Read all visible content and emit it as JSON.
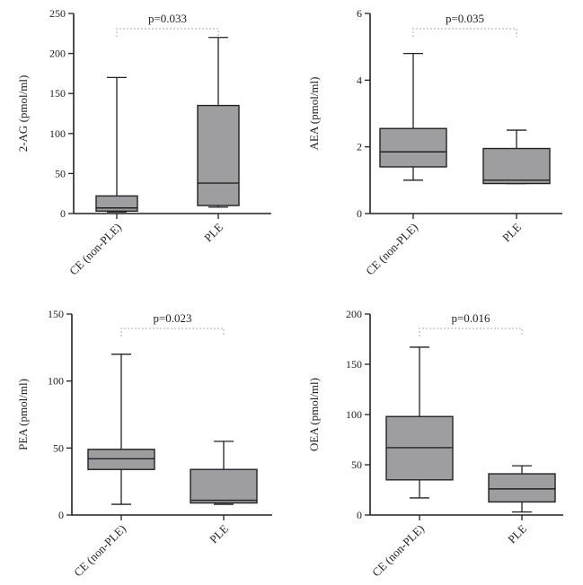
{
  "chart_data": [
    {
      "type": "boxplot",
      "ylabel": "2-AG (pmol/ml)",
      "ylim": [
        0,
        250
      ],
      "yticks": [
        0,
        50,
        100,
        150,
        200,
        250
      ],
      "categories": [
        "CE (non-PLE)",
        "PLE"
      ],
      "boxes": [
        {
          "category": "CE (non-PLE)",
          "min": 2,
          "q1": 3,
          "median": 7,
          "q3": 22,
          "max": 170
        },
        {
          "category": "PLE",
          "min": 8,
          "q1": 10,
          "median": 38,
          "q3": 135,
          "max": 220
        }
      ],
      "annotation": "p=0.033"
    },
    {
      "type": "boxplot",
      "ylabel": "AEA (pmol/ml)",
      "ylim": [
        0,
        6
      ],
      "yticks": [
        0,
        2,
        4,
        6
      ],
      "categories": [
        "CE (non-PLE)",
        "PLE"
      ],
      "boxes": [
        {
          "category": "CE (non-PLE)",
          "min": 1.0,
          "q1": 1.4,
          "median": 1.85,
          "q3": 2.55,
          "max": 4.8
        },
        {
          "category": "PLE",
          "min": 0.9,
          "q1": 0.9,
          "median": 1.0,
          "q3": 1.95,
          "max": 2.5
        }
      ],
      "annotation": "p=0.035"
    },
    {
      "type": "boxplot",
      "ylabel": "PEA (pmol/ml)",
      "ylim": [
        0,
        150
      ],
      "yticks": [
        0,
        50,
        100,
        150
      ],
      "categories": [
        "CE (non-PLE)",
        "PLE"
      ],
      "boxes": [
        {
          "category": "CE (non-PLE)",
          "min": 8,
          "q1": 34,
          "median": 42,
          "q3": 49,
          "max": 120
        },
        {
          "category": "PLE",
          "min": 8,
          "q1": 9,
          "median": 11,
          "q3": 34,
          "max": 55
        }
      ],
      "annotation": "p=0.023"
    },
    {
      "type": "boxplot",
      "ylabel": "OEA (pmol/ml)",
      "ylim": [
        0,
        200
      ],
      "yticks": [
        0,
        50,
        100,
        150,
        200
      ],
      "categories": [
        "CE (non-PLE)",
        "PLE"
      ],
      "boxes": [
        {
          "category": "CE (non-PLE)",
          "min": 17,
          "q1": 35,
          "median": 67,
          "q3": 98,
          "max": 167
        },
        {
          "category": "PLE",
          "min": 3,
          "q1": 13,
          "median": 26,
          "q3": 41,
          "max": 49
        }
      ],
      "annotation": "p=0.016"
    }
  ]
}
